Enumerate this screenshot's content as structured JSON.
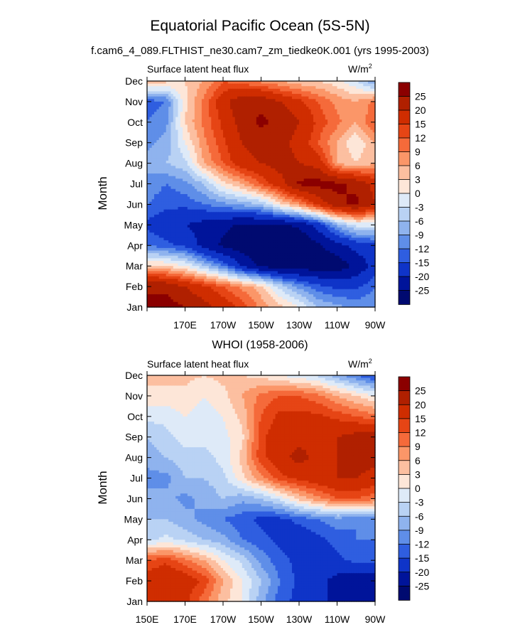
{
  "figure": {
    "title": "Equatorial Pacific Ocean (5S-5N)",
    "subtitle": "f.cam6_4_089.FLTHIST_ne30.cam7_zm_tiedke0K.001 (yrs 1995-2003)"
  },
  "chart_data": [
    {
      "type": "heatmap",
      "panel_title": "",
      "left_label": "Surface latent heat flux",
      "units_base": "W/m",
      "units_sup": "2",
      "ylabel": "Month",
      "xlabel": "",
      "y_categories": [
        "Jan",
        "Feb",
        "Mar",
        "Apr",
        "May",
        "Jun",
        "Jul",
        "Aug",
        "Sep",
        "Oct",
        "Nov",
        "Dec"
      ],
      "x_ticks": [
        "",
        "170E",
        "170W",
        "150W",
        "130W",
        "110W",
        "90W"
      ],
      "x_tick_lon": [
        150,
        170,
        190,
        210,
        230,
        250,
        270
      ],
      "x_range": [
        150,
        270
      ],
      "colorbar_levels": [
        "25",
        "20",
        "15",
        "12",
        "9",
        "6",
        "3",
        "0",
        "-3",
        "-6",
        "-9",
        "-12",
        "-15",
        "-20",
        "-25"
      ],
      "colorbar_colors": [
        "#8b0000",
        "#b02000",
        "#cf2d00",
        "#e64515",
        "#f56a3a",
        "#fb9668",
        "#fcbfa0",
        "#fde6d8",
        "#deeaf8",
        "#b9d2f4",
        "#8fb3ee",
        "#5f8ee8",
        "#2f5ee0",
        "#0f34c8",
        "#00149a",
        "#000a70"
      ],
      "grid_lon": [
        150,
        160,
        170,
        180,
        190,
        200,
        210,
        220,
        230,
        240,
        250,
        260,
        270
      ],
      "grid_month": [
        1,
        2,
        3,
        4,
        5,
        6,
        7,
        8,
        9,
        10,
        11,
        12
      ],
      "values": [
        [
          27,
          27,
          25,
          22,
          18,
          14,
          8,
          4,
          0,
          -6,
          -8,
          -10,
          -9
        ],
        [
          24,
          24,
          20,
          16,
          12,
          8,
          4,
          -4,
          -10,
          -14,
          -16,
          -16,
          -12
        ],
        [
          4,
          3,
          0,
          -6,
          -12,
          -20,
          -26,
          -28,
          -28,
          -28,
          -28,
          -24,
          -18
        ],
        [
          -12,
          -14,
          -16,
          -22,
          -26,
          -28,
          -30,
          -30,
          -30,
          -26,
          -22,
          -18,
          -16
        ],
        [
          -16,
          -18,
          -20,
          -22,
          -24,
          -26,
          -26,
          -26,
          -24,
          -18,
          -8,
          -2,
          -2
        ],
        [
          -12,
          -14,
          -14,
          -12,
          -10,
          -8,
          -6,
          2,
          8,
          16,
          24,
          26,
          20
        ],
        [
          -10,
          -12,
          -10,
          -6,
          2,
          6,
          12,
          18,
          26,
          27,
          26,
          24,
          18
        ],
        [
          -8,
          -6,
          -4,
          6,
          12,
          18,
          20,
          22,
          20,
          18,
          6,
          3,
          6
        ],
        [
          -10,
          -8,
          0,
          8,
          14,
          20,
          22,
          22,
          18,
          12,
          6,
          0,
          6
        ],
        [
          -12,
          -10,
          3,
          10,
          16,
          22,
          26,
          24,
          20,
          14,
          10,
          6,
          12
        ],
        [
          -14,
          -12,
          2,
          10,
          18,
          24,
          24,
          20,
          16,
          12,
          8,
          6,
          10
        ],
        [
          6,
          4,
          3,
          6,
          12,
          10,
          8,
          6,
          4,
          3,
          1,
          -3,
          -10
        ]
      ]
    },
    {
      "type": "heatmap",
      "panel_title": "WHOI (1958-2006)",
      "left_label": "Surface latent heat flux",
      "units_base": "W/m",
      "units_sup": "2",
      "ylabel": "Month",
      "xlabel": "",
      "y_categories": [
        "Jan",
        "Feb",
        "Mar",
        "Apr",
        "May",
        "Jun",
        "Jul",
        "Aug",
        "Sep",
        "Oct",
        "Nov",
        "Dec"
      ],
      "x_ticks": [
        "150E",
        "170E",
        "170W",
        "150W",
        "130W",
        "110W",
        "90W"
      ],
      "x_tick_lon": [
        150,
        170,
        190,
        210,
        230,
        250,
        270
      ],
      "x_range": [
        150,
        270
      ],
      "colorbar_levels": [
        "25",
        "20",
        "15",
        "12",
        "9",
        "6",
        "3",
        "0",
        "-3",
        "-6",
        "-9",
        "-12",
        "-15",
        "-20",
        "-25"
      ],
      "colorbar_colors": [
        "#8b0000",
        "#b02000",
        "#cf2d00",
        "#e64515",
        "#f56a3a",
        "#fb9668",
        "#fcbfa0",
        "#fde6d8",
        "#deeaf8",
        "#b9d2f4",
        "#8fb3ee",
        "#5f8ee8",
        "#2f5ee0",
        "#0f34c8",
        "#00149a",
        "#000a70"
      ],
      "grid_lon": [
        150,
        160,
        170,
        180,
        190,
        200,
        210,
        220,
        230,
        240,
        250,
        260,
        270
      ],
      "grid_month": [
        1,
        2,
        3,
        4,
        5,
        6,
        7,
        8,
        9,
        10,
        11,
        12
      ],
      "values": [
        [
          16,
          18,
          16,
          10,
          4,
          0,
          -8,
          -14,
          -16,
          -18,
          -22,
          -24,
          -24
        ],
        [
          18,
          20,
          18,
          14,
          6,
          0,
          -6,
          -12,
          -16,
          -18,
          -22,
          -24,
          -24
        ],
        [
          12,
          14,
          10,
          6,
          0,
          -4,
          -10,
          -14,
          -16,
          -18,
          -16,
          -14,
          -14
        ],
        [
          -4,
          -2,
          -4,
          -6,
          -8,
          -12,
          -14,
          -16,
          -18,
          -16,
          -14,
          -12,
          -12
        ],
        [
          -6,
          -6,
          -8,
          -10,
          -12,
          -14,
          -16,
          -16,
          -14,
          -12,
          -10,
          -12,
          -12
        ],
        [
          -8,
          -8,
          -10,
          -8,
          -6,
          -8,
          -6,
          -2,
          4,
          8,
          12,
          12,
          10
        ],
        [
          -10,
          -10,
          -6,
          -6,
          -4,
          2,
          8,
          14,
          16,
          18,
          20,
          20,
          18
        ],
        [
          -8,
          -6,
          -4,
          -4,
          -2,
          4,
          14,
          18,
          22,
          18,
          20,
          22,
          22
        ],
        [
          -6,
          -4,
          -2,
          -2,
          -1,
          2,
          14,
          18,
          18,
          20,
          20,
          22,
          24
        ],
        [
          -2,
          -2,
          0,
          -2,
          0,
          4,
          12,
          16,
          16,
          16,
          14,
          12,
          10
        ],
        [
          2,
          2,
          2,
          0,
          2,
          6,
          10,
          12,
          12,
          10,
          6,
          3,
          0
        ],
        [
          4,
          4,
          4,
          3,
          4,
          3,
          2,
          0,
          -2,
          -4,
          -8,
          -12,
          -16
        ]
      ]
    }
  ]
}
